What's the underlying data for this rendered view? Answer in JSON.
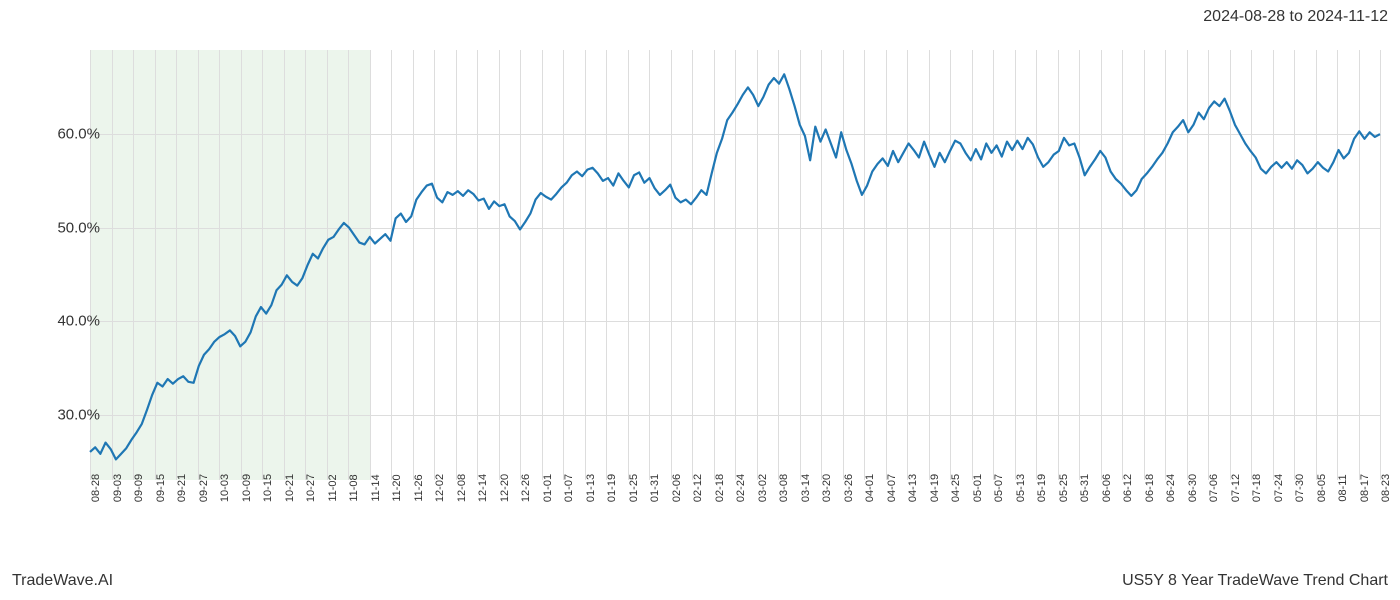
{
  "header": {
    "date_range": "2024-08-28 to 2024-11-12"
  },
  "footer": {
    "left": "TradeWave.AI",
    "right": "US5Y 8 Year TradeWave Trend Chart"
  },
  "chart": {
    "type": "line",
    "background_color": "#ffffff",
    "grid_color": "#dddddd",
    "line_color": "#1f77b4",
    "line_width": 2.2,
    "highlight_band": {
      "color": "#d5e8d4",
      "opacity": 0.45,
      "x_start": 0,
      "x_end": 13
    },
    "ylim": [
      23,
      69
    ],
    "y_ticks": [
      {
        "value": 30,
        "label": "30.0%"
      },
      {
        "value": 40,
        "label": "40.0%"
      },
      {
        "value": 50,
        "label": "50.0%"
      },
      {
        "value": 60,
        "label": "60.0%"
      }
    ],
    "y_label_fontsize": 15,
    "x_tick_labels": [
      "08-28",
      "09-03",
      "09-09",
      "09-15",
      "09-21",
      "09-27",
      "10-03",
      "10-09",
      "10-15",
      "10-21",
      "10-27",
      "11-02",
      "11-08",
      "11-14",
      "11-20",
      "11-26",
      "12-02",
      "12-08",
      "12-14",
      "12-20",
      "12-26",
      "01-01",
      "01-07",
      "01-13",
      "01-19",
      "01-25",
      "01-31",
      "02-06",
      "02-12",
      "02-18",
      "02-24",
      "03-02",
      "03-08",
      "03-14",
      "03-20",
      "03-26",
      "04-01",
      "04-07",
      "04-13",
      "04-19",
      "04-25",
      "05-01",
      "05-07",
      "05-13",
      "05-19",
      "05-25",
      "05-31",
      "06-06",
      "06-12",
      "06-18",
      "06-24",
      "06-30",
      "07-06",
      "07-12",
      "07-18",
      "07-24",
      "07-30",
      "08-05",
      "08-11",
      "08-17",
      "08-23"
    ],
    "x_label_fontsize": 11,
    "x_label_rotation": -90,
    "n_points": 183,
    "values": [
      26.0,
      26.5,
      25.8,
      27.0,
      26.3,
      25.2,
      25.8,
      26.4,
      27.3,
      28.1,
      29.0,
      30.5,
      32.1,
      33.4,
      33.0,
      33.8,
      33.3,
      33.8,
      34.1,
      33.5,
      33.4,
      35.2,
      36.4,
      37.0,
      37.8,
      38.3,
      38.6,
      39.0,
      38.4,
      37.3,
      37.8,
      38.8,
      40.5,
      41.5,
      40.8,
      41.7,
      43.3,
      43.9,
      44.9,
      44.2,
      43.8,
      44.6,
      46.0,
      47.2,
      46.7,
      47.8,
      48.7,
      49.0,
      49.8,
      50.5,
      50.0,
      49.2,
      48.4,
      48.2,
      49.0,
      48.3,
      48.8,
      49.3,
      48.6,
      51.0,
      51.5,
      50.6,
      51.2,
      53.0,
      53.8,
      54.5,
      54.7,
      53.2,
      52.7,
      53.8,
      53.5,
      53.9,
      53.4,
      54.0,
      53.6,
      52.9,
      53.1,
      52.0,
      52.8,
      52.3,
      52.5,
      51.2,
      50.7,
      49.8,
      50.6,
      51.5,
      53.0,
      53.7,
      53.3,
      53.0,
      53.6,
      54.3,
      54.8,
      55.6,
      56.0,
      55.5,
      56.2,
      56.4,
      55.8,
      55.0,
      55.3,
      54.5,
      55.8,
      55.0,
      54.3,
      55.6,
      55.9,
      54.8,
      55.3,
      54.2,
      53.5,
      54.0,
      54.6,
      53.2,
      52.7,
      53.0,
      52.5,
      53.2,
      54.0,
      53.5,
      55.8,
      58.0,
      59.5,
      61.5,
      62.3,
      63.2,
      64.2,
      65.0,
      64.2,
      63.0,
      64.0,
      65.3,
      66.0,
      65.4,
      66.4,
      64.8,
      63.0,
      61.0,
      59.8,
      57.2,
      60.8,
      59.2,
      60.5,
      59.0,
      57.5,
      60.2,
      58.3,
      56.8,
      55.0,
      53.5,
      54.5,
      56.0,
      56.8,
      57.4,
      58.2,
      57.0,
      58.0,
      59.0,
      58.3,
      59.2,
      57.8,
      56.5,
      58.0,
      57.0,
      58.2,
      59.0,
      58.0,
      57.2,
      55.6,
      56.5,
      57.3,
      58.2,
      57.5,
      58.0,
      57.0,
      55.8,
      56.4,
      56.0,
      57.8,
      58.6,
      60.0,
      59.6,
      60.2
    ],
    "values_extended": [
      26.0,
      26.5,
      25.8,
      27.0,
      26.3,
      25.2,
      25.8,
      26.4,
      27.3,
      28.1,
      29.0,
      30.5,
      32.1,
      33.4,
      33.0,
      33.8,
      33.3,
      33.8,
      34.1,
      33.5,
      33.4,
      35.2,
      36.4,
      37.0,
      37.8,
      38.3,
      38.6,
      39.0,
      38.4,
      37.3,
      37.8,
      38.8,
      40.5,
      41.5,
      40.8,
      41.7,
      43.3,
      43.9,
      44.9,
      44.2,
      43.8,
      44.6,
      46.0,
      47.2,
      46.7,
      47.8,
      48.7,
      49.0,
      49.8,
      50.5,
      50.0,
      49.2,
      48.4,
      48.2,
      49.0,
      48.3,
      48.8,
      49.3,
      48.6,
      51.0,
      51.5,
      50.6,
      51.2,
      53.0,
      53.8,
      54.5,
      54.7,
      53.2,
      52.7,
      53.8,
      53.5,
      53.9,
      53.4,
      54.0,
      53.6,
      52.9,
      53.1,
      52.0,
      52.8,
      52.3,
      52.5,
      51.2,
      50.7,
      49.8,
      50.6,
      51.5,
      53.0,
      53.7,
      53.3,
      53.0,
      53.6,
      54.3,
      54.8,
      55.6,
      56.0,
      55.5,
      56.2,
      56.4,
      55.8,
      55.0,
      55.3,
      54.5,
      55.8,
      55.0,
      54.3,
      55.6,
      55.9,
      54.8,
      55.3,
      54.2,
      53.5,
      54.0,
      54.6,
      53.2,
      52.7,
      53.0,
      52.5,
      53.2,
      54.0,
      53.5,
      55.8,
      58.0,
      59.5,
      61.5,
      62.3,
      63.2,
      64.2,
      65.0,
      64.2,
      63.0,
      64.0,
      65.3,
      66.0,
      65.4,
      66.4,
      64.8,
      63.0,
      61.0,
      59.8,
      57.2,
      60.8,
      59.2,
      60.5,
      59.0,
      57.5,
      60.2,
      58.3,
      56.8,
      55.0,
      53.5,
      54.5,
      56.0,
      56.8,
      57.4,
      56.6,
      58.2,
      57.0,
      58.0,
      59.0,
      58.3,
      57.5,
      59.2,
      57.8,
      56.5,
      58.0,
      57.0,
      58.2,
      59.3,
      59.0,
      58.0,
      57.2,
      58.4,
      57.3,
      59.0,
      58.0,
      58.8,
      57.6,
      59.2,
      58.3,
      59.3,
      58.4,
      59.6,
      58.9,
      57.5,
      56.5,
      57.0,
      57.8,
      58.2,
      59.6,
      58.8,
      59.0,
      57.5,
      55.6,
      56.5,
      57.3,
      58.2,
      57.5,
      56.0,
      55.2,
      54.7,
      54.0,
      53.4,
      54.0,
      55.2,
      55.8,
      56.5,
      57.3,
      58.0,
      59.0,
      60.2,
      60.8,
      61.5,
      60.2,
      61.0,
      62.3,
      61.6,
      62.8,
      63.5,
      63.0,
      63.8,
      62.5,
      61.0,
      60.0,
      59.0,
      58.2,
      57.5,
      56.3,
      55.8,
      56.5,
      57.0,
      56.4,
      57.0,
      56.3,
      57.2,
      56.7,
      55.8,
      56.3,
      57.0,
      56.4,
      56.0,
      57.0,
      58.3,
      57.4,
      58.0,
      59.5,
      60.3,
      59.5,
      60.2,
      59.7,
      60.0
    ]
  }
}
